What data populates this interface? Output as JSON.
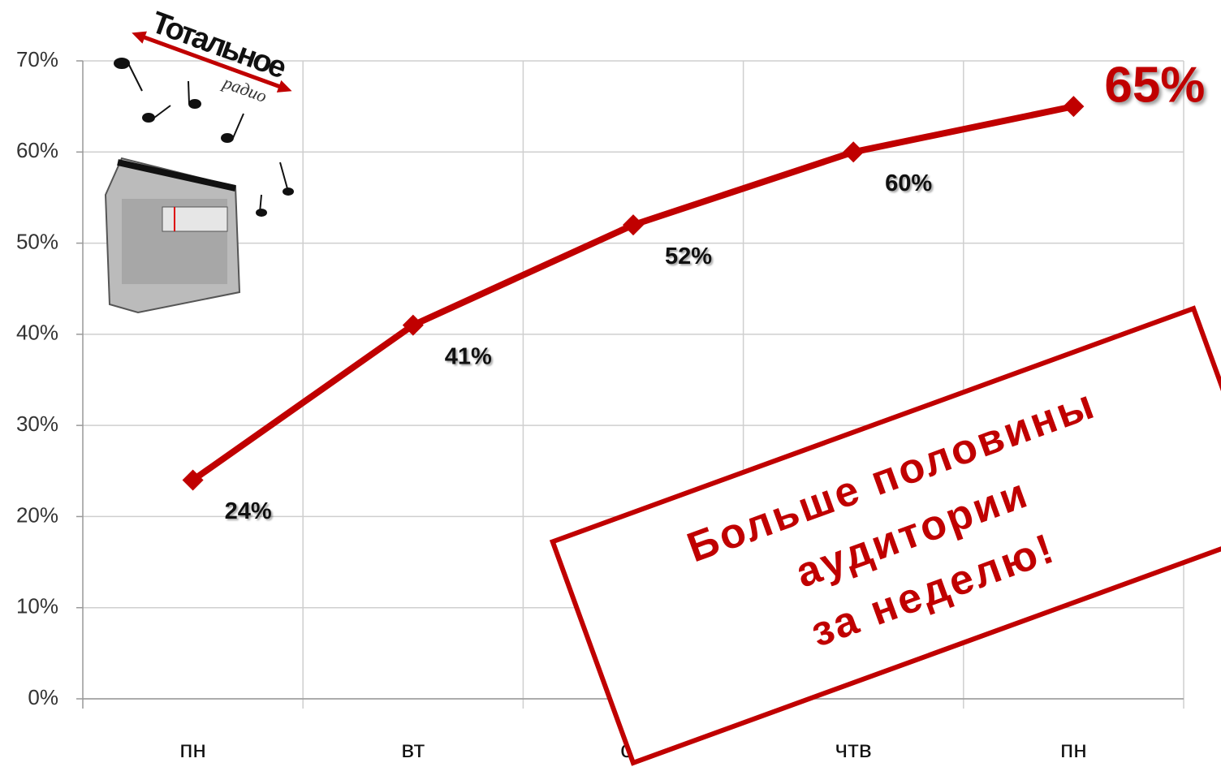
{
  "chart_data": {
    "type": "line",
    "categories": [
      "пн",
      "вт",
      "ср",
      "чтв",
      "пн"
    ],
    "series": [
      {
        "name": "аудитория",
        "color": "#c00000",
        "values": [
          24,
          41,
          52,
          60,
          65
        ],
        "value_labels": [
          "24%",
          "41%",
          "52%",
          "60%",
          "65%"
        ]
      }
    ],
    "ylim": [
      0,
      70
    ],
    "yticks": [
      {
        "value": 0,
        "label": "0%"
      },
      {
        "value": 10,
        "label": "10%"
      },
      {
        "value": 20,
        "label": "20%"
      },
      {
        "value": 30,
        "label": "30%"
      },
      {
        "value": 40,
        "label": "40%"
      },
      {
        "value": 50,
        "label": "50%"
      },
      {
        "value": 60,
        "label": "60%"
      },
      {
        "value": 70,
        "label": "70%"
      }
    ],
    "grid": true,
    "logo": {
      "title": "Тотальное",
      "subtitle": "радио"
    },
    "annotation": [
      "Больше половины",
      "аудитории",
      "за неделю!"
    ]
  }
}
